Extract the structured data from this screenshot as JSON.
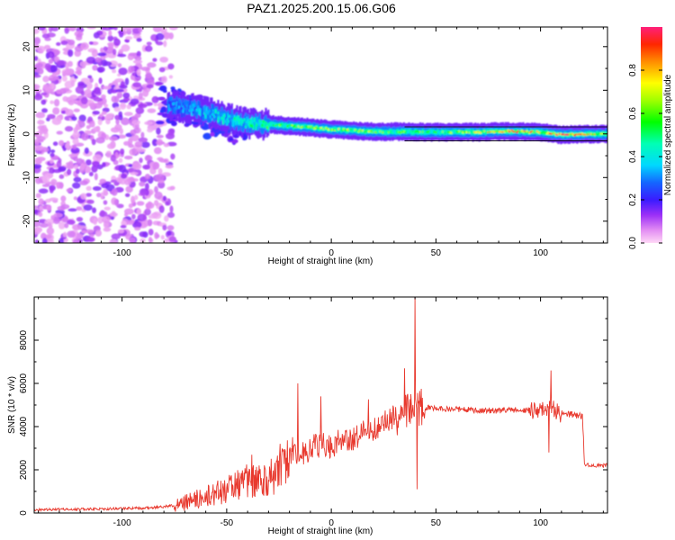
{
  "title": "PAZ1.2025.200.15.06.G06",
  "chart_data": [
    {
      "type": "heatmap",
      "xlabel": "Height of straight line (km)",
      "ylabel": "Frequency (Hz)",
      "xlim": [
        -142,
        132
      ],
      "ylim": [
        -25,
        24.5
      ],
      "xticks": [
        -100,
        -50,
        0,
        50,
        100
      ],
      "yticks": [
        -20,
        -10,
        0,
        10,
        20
      ],
      "colorbar": {
        "label": "Normalized spectral amplitude",
        "range": [
          0,
          1
        ],
        "ticks": [
          0.0,
          0.2,
          0.4,
          0.6,
          0.8
        ],
        "tick_labels": [
          "0.0",
          "0.2",
          "0.4",
          "0.6",
          "0.8"
        ],
        "colormap": "rainbow (pink-violet at 0 through blue, cyan, green, yellow, orange to red at 1)"
      },
      "ridge": [
        {
          "x": -75,
          "y": 6.5,
          "amp": 0.3
        },
        {
          "x": -60,
          "y": 5.0,
          "amp": 0.35
        },
        {
          "x": -50,
          "y": 3.5,
          "amp": 0.4
        },
        {
          "x": -40,
          "y": 2.5,
          "amp": 0.45
        },
        {
          "x": -25,
          "y": 2.0,
          "amp": 0.55
        },
        {
          "x": -10,
          "y": 1.5,
          "amp": 0.6
        },
        {
          "x": 0,
          "y": 1.0,
          "amp": 0.65
        },
        {
          "x": 10,
          "y": 0.8,
          "amp": 0.65
        },
        {
          "x": 20,
          "y": 0.5,
          "amp": 0.6
        },
        {
          "x": 35,
          "y": 0.5,
          "amp": 0.55
        },
        {
          "x": 50,
          "y": 0.4,
          "amp": 0.55
        },
        {
          "x": 70,
          "y": 0.4,
          "amp": 0.65
        },
        {
          "x": 85,
          "y": 0.6,
          "amp": 0.85
        },
        {
          "x": 100,
          "y": 0.4,
          "amp": 0.7
        },
        {
          "x": 110,
          "y": -0.2,
          "amp": 0.95
        },
        {
          "x": 132,
          "y": 0.0,
          "amp": 0.6
        }
      ]
    },
    {
      "type": "line",
      "xlabel": "Height of straight line (km)",
      "ylabel": "SNR (10 * v/v)",
      "xlim": [
        -142,
        132
      ],
      "ylim": [
        0,
        10000
      ],
      "xticks": [
        -100,
        -50,
        0,
        50,
        100
      ],
      "yticks": [
        0,
        2000,
        4000,
        6000,
        8000
      ],
      "series": [
        {
          "color": "#e8392e",
          "x": [
            -142,
            -120,
            -100,
            -85,
            -75,
            -65,
            -55,
            -45,
            -35,
            -28,
            -22,
            -18,
            -15,
            -10,
            -5,
            0,
            5,
            10,
            15,
            20,
            25,
            30,
            33,
            36,
            40,
            43,
            50,
            60,
            70,
            80,
            90,
            100,
            105,
            110,
            115,
            120,
            121,
            125,
            132
          ],
          "y": [
            150,
            180,
            200,
            250,
            350,
            600,
            900,
            1300,
            1500,
            1700,
            2300,
            3000,
            2600,
            3000,
            3200,
            3100,
            3400,
            3400,
            3700,
            3900,
            4200,
            4400,
            4500,
            4700,
            4600,
            4900,
            4850,
            4800,
            4750,
            4750,
            4800,
            4700,
            4800,
            4600,
            4550,
            4500,
            2250,
            2200,
            2200
          ]
        }
      ],
      "spikes": [
        {
          "x": -38,
          "y": 2700
        },
        {
          "x": -16,
          "y": 6000
        },
        {
          "x": -5,
          "y": 5400
        },
        {
          "x": 35,
          "y": 6700
        },
        {
          "x": 40,
          "y": 10000
        },
        {
          "x": 41,
          "y": 1100
        },
        {
          "x": 105,
          "y": 6600
        },
        {
          "x": 104,
          "y": 2800
        }
      ]
    }
  ]
}
